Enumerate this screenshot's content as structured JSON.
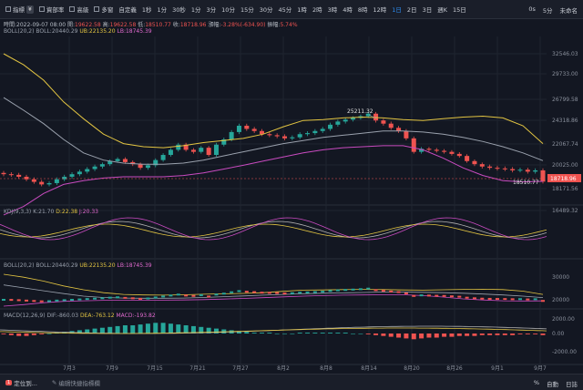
{
  "toolbar": {
    "indicators_label": "指標",
    "indicators_badge": "¥",
    "funding_label": "資部率",
    "advanced_label": "高級",
    "multi_label": "多窗",
    "custom_label": "自定義",
    "timeframes": [
      "1秒",
      "1分",
      "30秒",
      "1分",
      "3分",
      "10分",
      "15分",
      "30分",
      "45分",
      "1時",
      "2時",
      "3時",
      "4時",
      "8時",
      "12時",
      "1日",
      "2日",
      "3日",
      "週K",
      "15日"
    ],
    "active_timeframe_index": 15,
    "right_items": [
      "0s",
      "5分",
      "未命名"
    ]
  },
  "ohlc": {
    "time": "時間:2022-09-07 08:00",
    "open_label": "開:",
    "open": "19622.58",
    "high_label": "高:",
    "high": "19622.58",
    "low_label": "低:",
    "low": "18510.77",
    "close_label": "收:",
    "close": "18718.96",
    "change_label": "漲幅:",
    "change": "-3.28%(-634.90)",
    "amp_label": "振幅:",
    "amp": "5.74%"
  },
  "boll_main": {
    "name": "BOLL(20,2)",
    "boll": "BOLL:20440.29",
    "ub": "UB:22135.20",
    "lb": "LB:18745.39"
  },
  "price_axis": [
    "32546.03",
    "29733.00",
    "26799.58",
    "24318.86",
    "22067.74",
    "20025.00",
    "18171.56",
    "16489.32"
  ],
  "current_price": "18718.96",
  "annotations": {
    "high_marker": "25211.32",
    "low_marker": "18510.77"
  },
  "kdj": {
    "name": "KDJ(9,3,3)",
    "k": "K:21.70",
    "d": "D:22.38",
    "j": "J:20.33"
  },
  "boll_sub": {
    "name": "BOLL(20,2)",
    "boll": "BOLL:20440.29",
    "ub": "UB:22135.20",
    "lb": "LB:18745.39",
    "axis": [
      "30000",
      "20000"
    ]
  },
  "macd": {
    "name": "MACD(12,26,9)",
    "dif": "DIF:-860.03",
    "dea": "DEA:-763.12",
    "macd": "MACD:-193.82",
    "axis": [
      "2000.00",
      "0.00",
      "-2000.00"
    ]
  },
  "x_axis": [
    "7月3",
    "7月9",
    "7月15",
    "7月21",
    "7月27",
    "8月2",
    "8月8",
    "8月14",
    "8月20",
    "8月26",
    "9月1",
    "9月7"
  ],
  "bottombar": {
    "locate_label": "定位到...",
    "indicator_prompt": "编辑快捷指標欄",
    "right_items": [
      "%",
      "自動",
      "日誌"
    ],
    "left_badge": "1"
  },
  "colors": {
    "up": "#26a69a",
    "down": "#ef5350",
    "boll_mid": "#9aa1ad",
    "boll_ub": "#e3c542",
    "boll_lb": "#c94bc0",
    "bg": "#131722"
  }
}
